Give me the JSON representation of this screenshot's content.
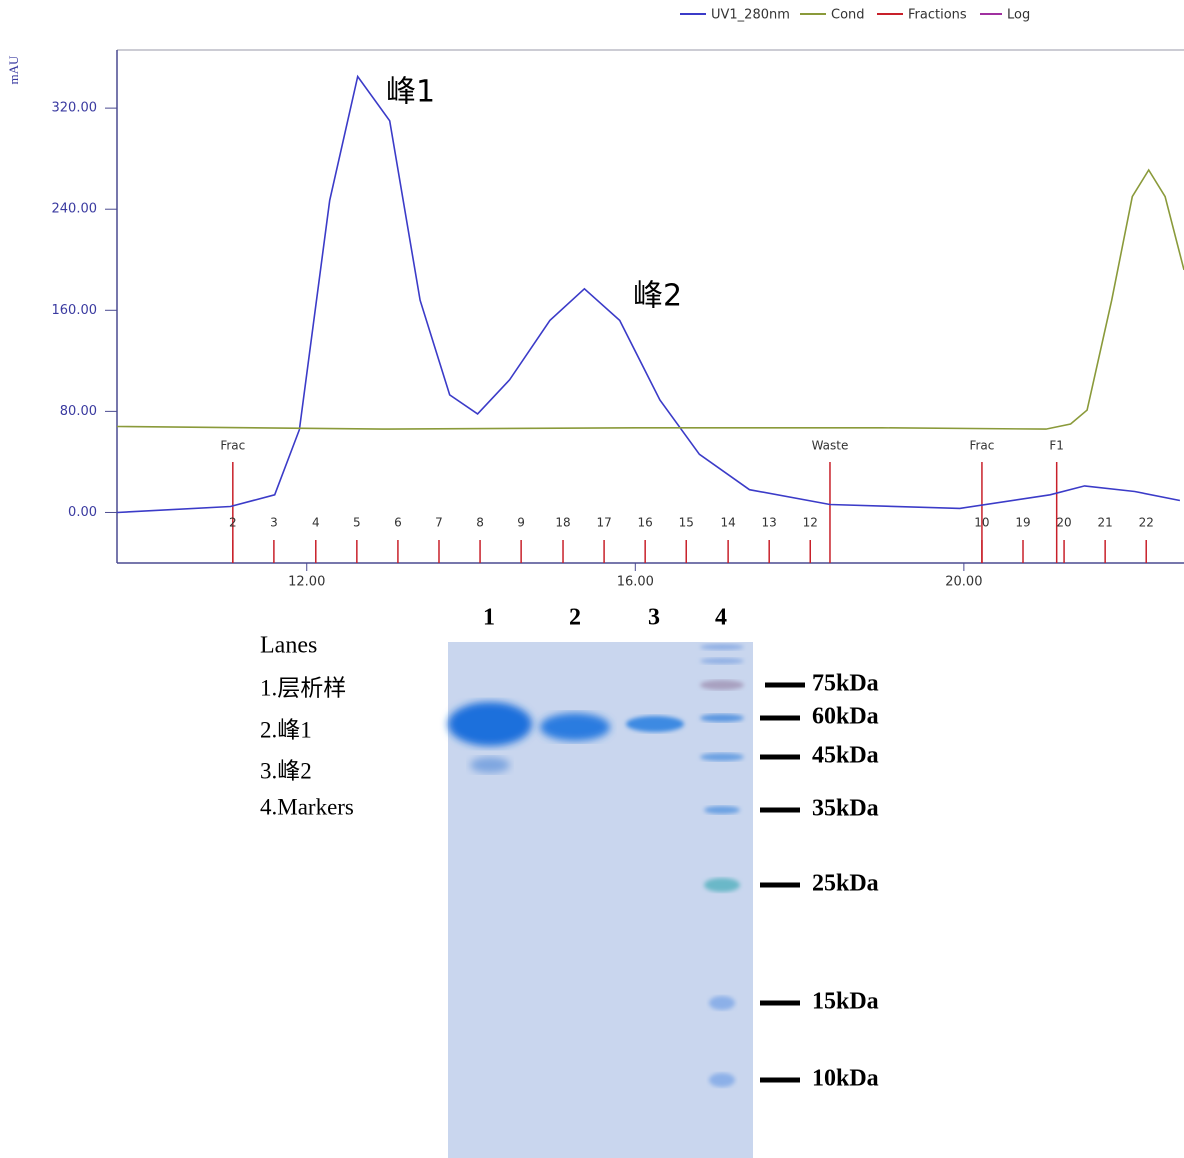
{
  "chart_data": {
    "type": "line",
    "y_label": "mAU",
    "xlim": [
      9.69,
      22.68
    ],
    "ylim": [
      -40,
      366
    ],
    "xticks": [
      {
        "value": 12,
        "label": "12.00"
      },
      {
        "value": 16,
        "label": "16.00"
      },
      {
        "value": 20,
        "label": "20.00"
      }
    ],
    "yticks": [
      {
        "value": 0,
        "label": "0.00"
      },
      {
        "value": 80,
        "label": "80.00"
      },
      {
        "value": 160,
        "label": "160.00"
      },
      {
        "value": 240,
        "label": "240.00"
      },
      {
        "value": 320,
        "label": "320.00"
      }
    ],
    "series": [
      {
        "name": "UV1_280nm",
        "color": "#3b3bc8",
        "x": [
          9.69,
          11.07,
          11.61,
          11.91,
          12.28,
          12.62,
          13.01,
          13.38,
          13.74,
          14.08,
          14.47,
          14.96,
          15.38,
          15.81,
          16.3,
          16.78,
          17.39,
          18.37,
          19.95,
          21.05,
          21.47,
          22.08,
          22.63
        ],
        "values": [
          0,
          4.7,
          14,
          65.6,
          247,
          345,
          310,
          168,
          93,
          78,
          105,
          152,
          177,
          152,
          89,
          46,
          18,
          6.3,
          3.2,
          14,
          21,
          16.6,
          9.5
        ]
      },
      {
        "name": "Cond",
        "color": "#8a9a3a",
        "x": [
          9.69,
          13,
          16,
          19,
          21,
          21.3,
          21.5,
          21.8,
          22.05,
          22.25,
          22.45,
          22.68
        ],
        "values": [
          68,
          66,
          67,
          67,
          66,
          70,
          81,
          168,
          250,
          271,
          250,
          192
        ]
      },
      {
        "name": "Fractions",
        "color": "#c8202a",
        "x": [
          11.1,
          11.6,
          12.11,
          12.61,
          13.11,
          13.61,
          14.11,
          14.61,
          15.12,
          15.62,
          16.12,
          16.62,
          17.13,
          17.63,
          18.13,
          20.22,
          20.72,
          21.22,
          21.72,
          22.22
        ],
        "labels": [
          "2",
          "3",
          "4",
          "5",
          "6",
          "7",
          "8",
          "9",
          "18",
          "17",
          "16",
          "15",
          "14",
          "13",
          "12",
          "10",
          "19",
          "20",
          "21",
          "22"
        ],
        "events_x": [
          11.1,
          18.37,
          20.22,
          21.13
        ],
        "events": [
          "Frac",
          "Waste",
          "Frac",
          "F1"
        ]
      },
      {
        "name": "Log",
        "color": "#a030a0"
      }
    ],
    "annotations": [
      "峰1",
      "峰2"
    ]
  },
  "gel": {
    "lane_numbers": [
      "1",
      "2",
      "3",
      "4"
    ],
    "lanes_title": "Lanes",
    "lanes": [
      "1.层析样",
      "2.峰1",
      "3.峰2",
      "4.Markers"
    ],
    "markers": [
      "75kDa",
      "60kDa",
      "45kDa",
      "35kDa",
      "25kDa",
      "15kDa",
      "10kDa"
    ]
  }
}
